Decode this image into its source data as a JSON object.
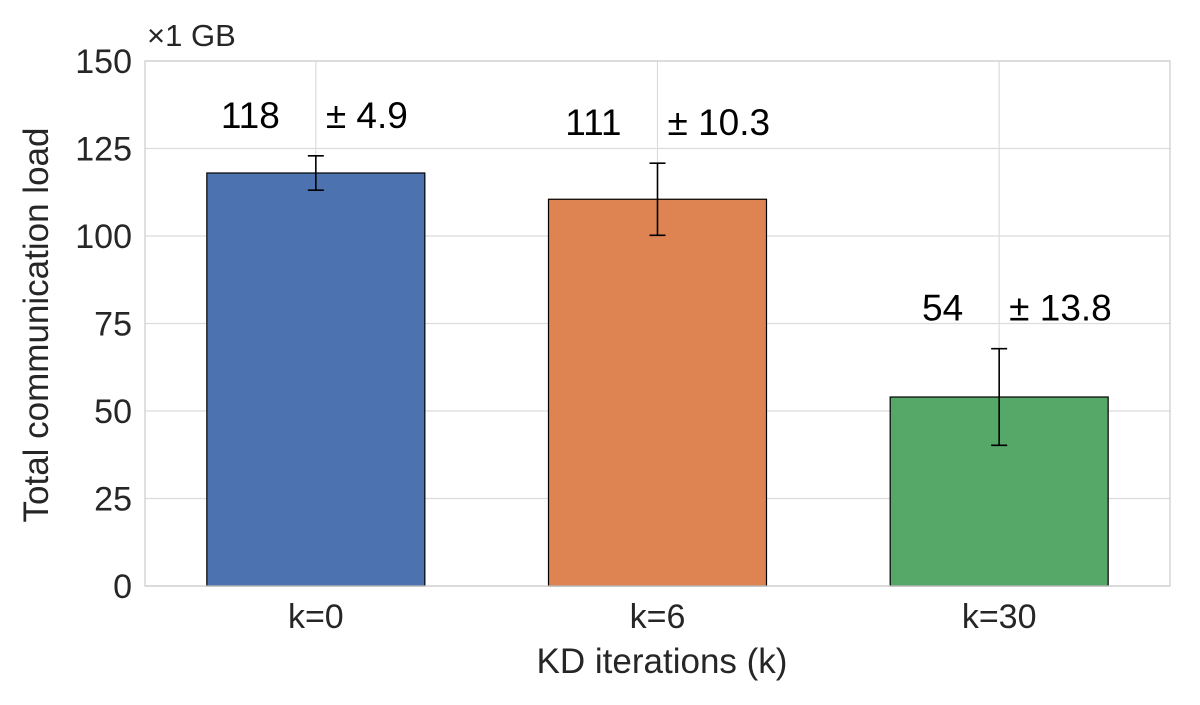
{
  "chart_data": {
    "type": "bar",
    "scale_label": "×1 GB",
    "xlabel": "KD iterations (k)",
    "ylabel": "Total communication load",
    "ylim": [
      0,
      150
    ],
    "yticks": [
      0,
      25,
      50,
      75,
      100,
      125,
      150
    ],
    "grid": true,
    "categories": [
      "k=0",
      "k=6",
      "k=30"
    ],
    "values": [
      118,
      110.5,
      54
    ],
    "errors": [
      4.9,
      10.3,
      13.8
    ],
    "value_labels": [
      "118",
      "111",
      "54"
    ],
    "error_labels": [
      "± 4.9",
      "± 10.3",
      "± 13.8"
    ],
    "colors": [
      "#4c72b0",
      "#dd8452",
      "#55a868"
    ]
  }
}
